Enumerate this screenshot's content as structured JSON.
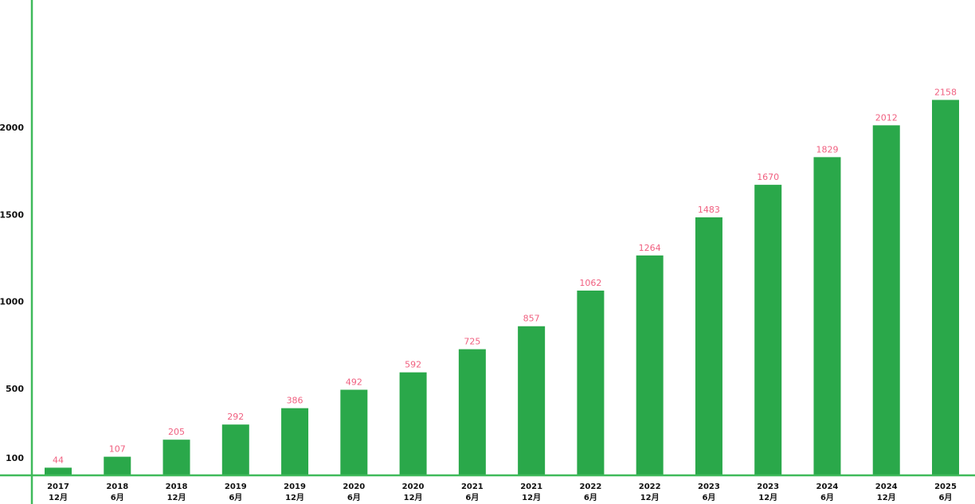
{
  "chart_data": {
    "type": "bar",
    "title": "",
    "xlabel": "",
    "ylabel": "",
    "categories": [
      [
        "2017",
        "12月"
      ],
      [
        "2018",
        "6月"
      ],
      [
        "2018",
        "12月"
      ],
      [
        "2019",
        "6月"
      ],
      [
        "2019",
        "12月"
      ],
      [
        "2020",
        "6月"
      ],
      [
        "2020",
        "12月"
      ],
      [
        "2021",
        "6月"
      ],
      [
        "2021",
        "12月"
      ],
      [
        "2022",
        "6月"
      ],
      [
        "2022",
        "12月"
      ],
      [
        "2023",
        "6月"
      ],
      [
        "2023",
        "12月"
      ],
      [
        "2024",
        "6月"
      ],
      [
        "2024",
        "12月"
      ],
      [
        "2025",
        "6月"
      ]
    ],
    "values": [
      44,
      107,
      205,
      292,
      386,
      492,
      592,
      725,
      857,
      1062,
      1264,
      1483,
      1670,
      1829,
      2012,
      2158
    ],
    "yticks": [
      100,
      500,
      1000,
      1500,
      2000
    ],
    "ylim": [
      0,
      2730
    ],
    "grid": false,
    "data_labels": true,
    "colors": {
      "bar": "#2aa84a",
      "axis": "#3fba5a",
      "data_label": "#f06080"
    }
  }
}
